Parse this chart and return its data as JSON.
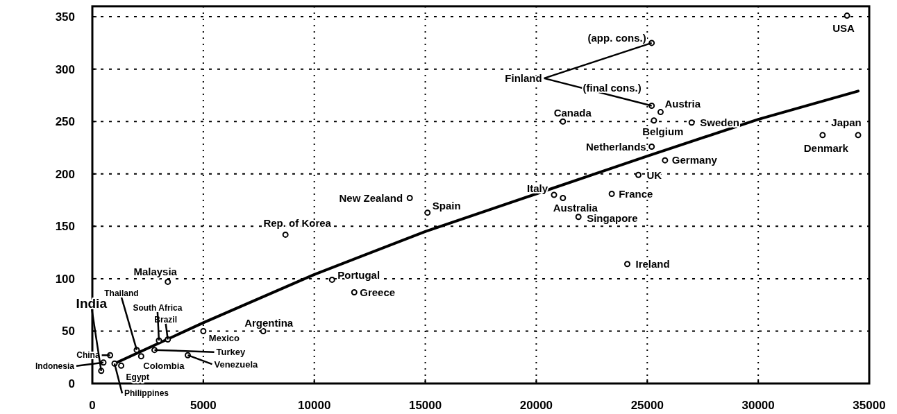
{
  "chart_data": {
    "type": "scatter",
    "xlim": [
      0,
      35000
    ],
    "ylim": [
      0,
      360
    ],
    "xticks": [
      0,
      5000,
      10000,
      15000,
      20000,
      25000,
      30000,
      35000
    ],
    "yticks": [
      0,
      50,
      100,
      150,
      200,
      250,
      300,
      350
    ],
    "grid": true,
    "marker": "circle",
    "series": [
      {
        "color": "#000000",
        "x": [
          34000,
          25200,
          25200,
          25600,
          25300,
          27000,
          21200,
          34500,
          32900,
          25200,
          25800,
          24600,
          23400,
          20800,
          21200,
          21900,
          24100,
          15100,
          14300,
          8700,
          10800,
          11800,
          3400,
          7700,
          5000,
          4300,
          2800,
          3400,
          3000,
          2000,
          2200,
          800,
          400,
          500,
          1300,
          1000
        ],
        "values": [
          351,
          325,
          265,
          259,
          251,
          249,
          250,
          237,
          237,
          226,
          213,
          199,
          181,
          180,
          177,
          159,
          114,
          163,
          177,
          142,
          99,
          87,
          97,
          50,
          50,
          27,
          32,
          42,
          41,
          32,
          26,
          27,
          12,
          20,
          17,
          19
        ]
      },
      {
        "type": "line",
        "color": "#000000",
        "line_style": "solid",
        "marker": "none",
        "x": [
          1000,
          5000,
          10000,
          15000,
          20000,
          25000,
          30000,
          34500
        ],
        "values": [
          19,
          58,
          104,
          145,
          181,
          217,
          252,
          279
        ]
      }
    ],
    "annotations": [
      {
        "text": "USA",
        "x": 34000,
        "y": 351
      },
      {
        "text": "(app. cons.)",
        "x": 25200,
        "y": 325
      },
      {
        "text": "Finland",
        "x": 25200,
        "y": 325
      },
      {
        "text": "(final cons.)",
        "x": 25200,
        "y": 265
      },
      {
        "text": "Austria",
        "x": 25600,
        "y": 259
      },
      {
        "text": "Belgium",
        "x": 25300,
        "y": 251
      },
      {
        "text": "Sweden",
        "x": 27000,
        "y": 249
      },
      {
        "text": "Canada",
        "x": 21200,
        "y": 250
      },
      {
        "text": "Japan",
        "x": 34500,
        "y": 237
      },
      {
        "text": "Denmark",
        "x": 32900,
        "y": 237
      },
      {
        "text": "Netherlands",
        "x": 25200,
        "y": 226
      },
      {
        "text": "Germany",
        "x": 25800,
        "y": 213
      },
      {
        "text": "UK",
        "x": 24600,
        "y": 199
      },
      {
        "text": "France",
        "x": 23400,
        "y": 181
      },
      {
        "text": "Italy",
        "x": 20800,
        "y": 180
      },
      {
        "text": "Australia",
        "x": 21200,
        "y": 177
      },
      {
        "text": "Singapore",
        "x": 21900,
        "y": 159
      },
      {
        "text": "Ireland",
        "x": 24100,
        "y": 114
      },
      {
        "text": "Spain",
        "x": 15100,
        "y": 163
      },
      {
        "text": "New Zealand",
        "x": 14300,
        "y": 177
      },
      {
        "text": "Rep. of Korea",
        "x": 8700,
        "y": 142
      },
      {
        "text": "Portugal",
        "x": 10800,
        "y": 99
      },
      {
        "text": "Greece",
        "x": 11800,
        "y": 87
      },
      {
        "text": "Malaysia",
        "x": 3400,
        "y": 97
      },
      {
        "text": "Argentina",
        "x": 7700,
        "y": 50
      },
      {
        "text": "Mexico",
        "x": 5000,
        "y": 50
      },
      {
        "text": "Venezuela",
        "x": 4300,
        "y": 27
      },
      {
        "text": "Turkey",
        "x": 2800,
        "y": 32
      },
      {
        "text": "Brazil",
        "x": 3400,
        "y": 42
      },
      {
        "text": "South Africa",
        "x": 3000,
        "y": 41
      },
      {
        "text": "Thailand",
        "x": 2000,
        "y": 32
      },
      {
        "text": "Colombia",
        "x": 2200,
        "y": 26
      },
      {
        "text": "China",
        "x": 800,
        "y": 27
      },
      {
        "text": "India",
        "x": 400,
        "y": 12
      },
      {
        "text": "Indonesia",
        "x": 500,
        "y": 20
      },
      {
        "text": "Egypt",
        "x": 1300,
        "y": 17
      },
      {
        "text": "Philippines",
        "x": 1000,
        "y": 19
      }
    ]
  }
}
